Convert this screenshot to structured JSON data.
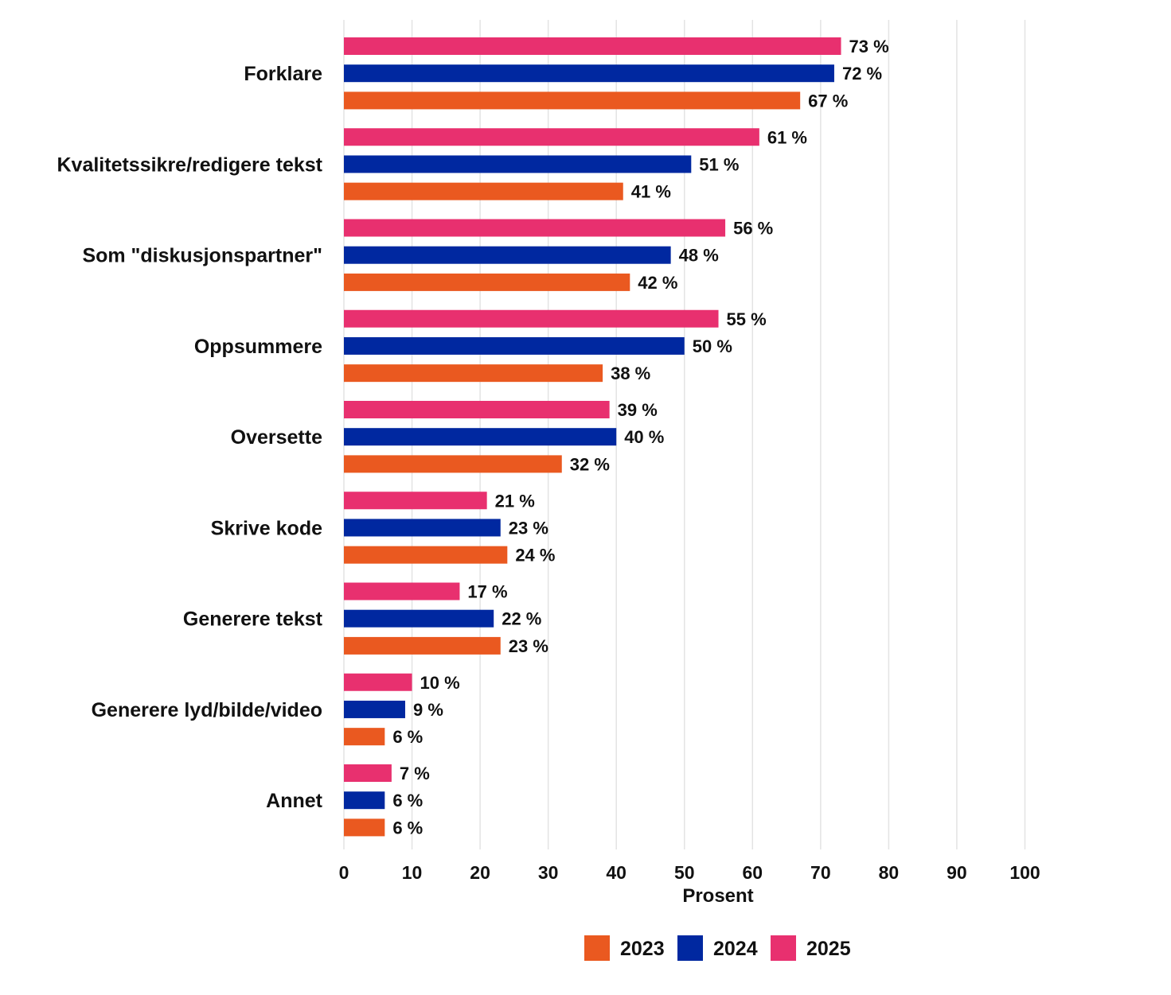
{
  "chart_data": {
    "type": "bar",
    "orientation": "horizontal",
    "categories": [
      "Forklare",
      "Kvalitetssikre/redigere tekst",
      "Som \"diskusjonspartner\"",
      "Oppsummere",
      "Oversette",
      "Skrive kode",
      "Generere tekst",
      "Generere lyd/bilde/video",
      "Annet"
    ],
    "series": [
      {
        "name": "2025",
        "color": "#E8306F",
        "values": [
          73,
          61,
          56,
          55,
          39,
          21,
          17,
          10,
          7
        ]
      },
      {
        "name": "2024",
        "color": "#0028A0",
        "values": [
          72,
          51,
          48,
          50,
          40,
          23,
          22,
          9,
          6
        ]
      },
      {
        "name": "2023",
        "color": "#EA5920",
        "values": [
          67,
          41,
          42,
          38,
          32,
          24,
          23,
          6,
          6
        ]
      }
    ],
    "value_suffix": " %",
    "xlabel": "Prosent",
    "ylabel": "",
    "xlim": [
      0,
      100
    ],
    "xticks": [
      "0",
      "10",
      "20",
      "30",
      "40",
      "50",
      "60",
      "70",
      "80",
      "90",
      "100"
    ],
    "grid": true,
    "legend": {
      "position": "bottom",
      "items": [
        {
          "name": "2023",
          "color": "#EA5920"
        },
        {
          "name": "2024",
          "color": "#0028A0"
        },
        {
          "name": "2025",
          "color": "#E8306F"
        }
      ]
    }
  }
}
